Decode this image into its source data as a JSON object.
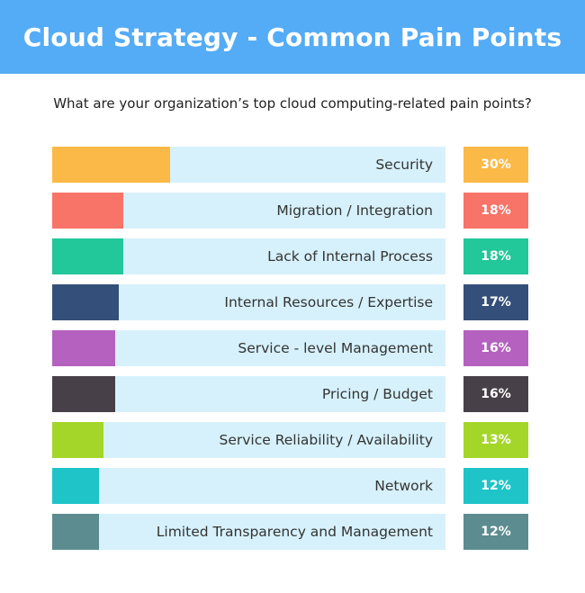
{
  "title": "Cloud Strategy - Common Pain Points",
  "subtitle": "What are your organization’s top cloud computing-related pain points?",
  "chart_data": {
    "type": "bar",
    "orientation": "horizontal",
    "xlim": [
      0,
      100
    ],
    "value_suffix": "%",
    "categories": [
      "Security",
      "Migration / Integration",
      "Lack of Internal Process",
      "Internal Resources / Expertise",
      "Service - level Management",
      "Pricing / Budget",
      "Service Reliability / Availability",
      "Network",
      "Limited Transparency and Management"
    ],
    "values": [
      30,
      18,
      18,
      17,
      16,
      16,
      13,
      12,
      12
    ],
    "value_labels": [
      "30%",
      "18%",
      "18%",
      "17%",
      "16%",
      "16%",
      "13%",
      "12%",
      "12%"
    ],
    "colors": [
      "#fbb947",
      "#f87469",
      "#22c79a",
      "#34507a",
      "#b561c0",
      "#484049",
      "#a4d62a",
      "#1ec4c8",
      "#5c8c8f"
    ],
    "track_color": "#d6f1fb"
  }
}
